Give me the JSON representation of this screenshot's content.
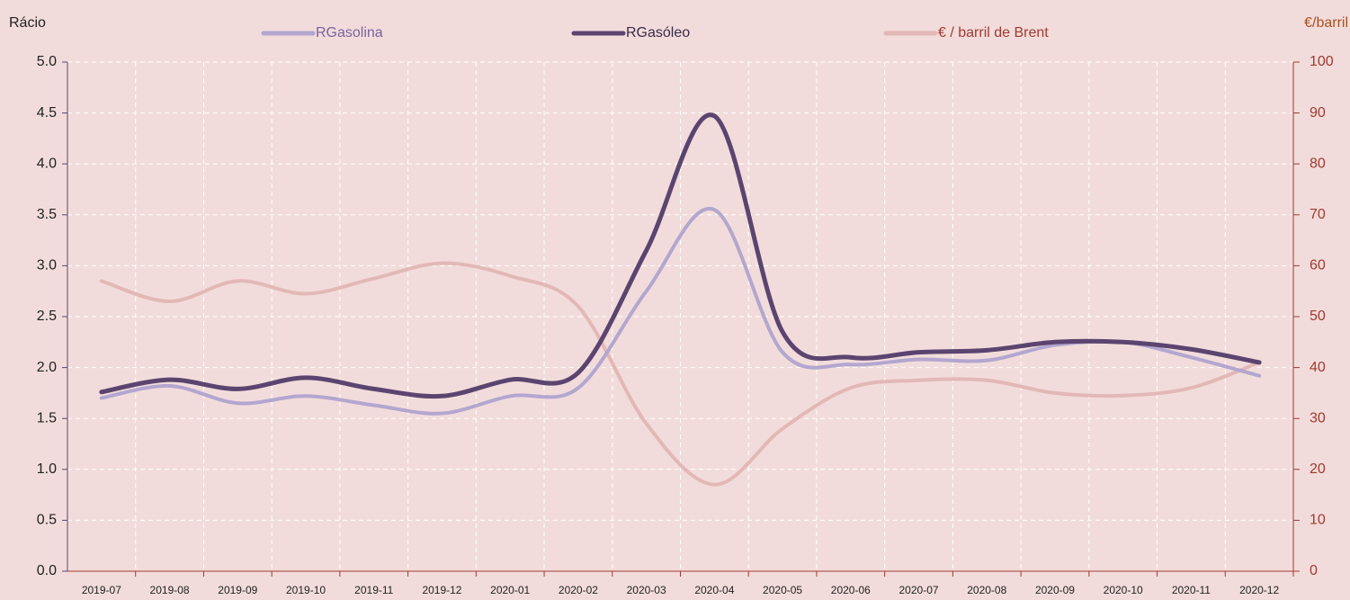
{
  "chart_data": {
    "type": "line",
    "y_label": "Rácio",
    "y2_label": "€/barril",
    "categories": [
      "2019-07",
      "2019-08",
      "2019-09",
      "2019-10",
      "2019-11",
      "2019-12",
      "2020-01",
      "2020-02",
      "2020-03",
      "2020-04",
      "2020-05",
      "2020-06",
      "2020-07",
      "2020-08",
      "2020-09",
      "2020-10",
      "2020-11",
      "2020-12"
    ],
    "series": [
      {
        "name": "RGasolina",
        "color": "#b3a6cf",
        "values": [
          1.7,
          1.82,
          1.65,
          1.72,
          1.63,
          1.55,
          1.72,
          1.8,
          2.75,
          3.55,
          2.15,
          2.03,
          2.08,
          2.07,
          2.22,
          2.25,
          2.1,
          1.92
        ]
      },
      {
        "name": "RGasóleo",
        "color": "#5c4470",
        "values": [
          1.76,
          1.88,
          1.79,
          1.9,
          1.79,
          1.72,
          1.88,
          1.95,
          3.15,
          4.47,
          2.35,
          2.1,
          2.15,
          2.17,
          2.25,
          2.25,
          2.18,
          2.05
        ]
      },
      {
        "name": "€ / barril de Brent",
        "color": "#e2b8b6",
        "axis": "y2",
        "values": [
          57,
          53,
          57,
          54.5,
          57.5,
          60.5,
          58,
          52,
          29,
          17,
          28,
          36,
          37.5,
          37.5,
          35,
          34.5,
          36,
          41
        ]
      }
    ],
    "ylim": [
      0,
      5
    ],
    "yticks": [
      {
        "value": 0,
        "label": "0.0"
      },
      0.5,
      {
        "value": 1,
        "label": "1.0"
      },
      1.5,
      {
        "value": 2,
        "label": "2.0"
      },
      2.5,
      {
        "value": 3,
        "label": "3.0"
      },
      3.5,
      {
        "value": 4,
        "label": "4.0"
      },
      4.5,
      {
        "value": 5,
        "label": "5.0"
      }
    ],
    "y2lim": [
      0,
      100
    ],
    "y2ticks": [
      0,
      10,
      20,
      30,
      40,
      50,
      60,
      70,
      80,
      90,
      100
    ],
    "grid": true
  }
}
